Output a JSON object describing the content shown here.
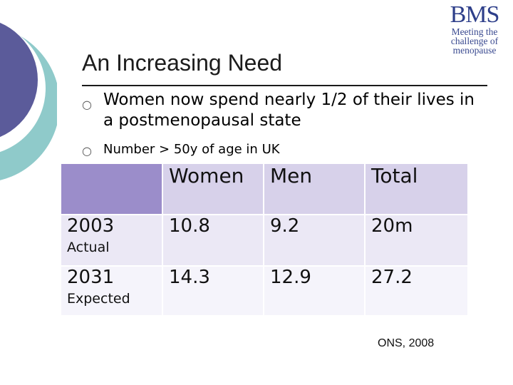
{
  "logo": {
    "mark": "BMS",
    "tagline": [
      "Meeting the",
      "challenge of",
      "menopause"
    ]
  },
  "title": "An Increasing Need",
  "bullets": [
    "Women now spend nearly 1/2 of their lives in a postmenopausal state",
    "Number > 50y of age in UK"
  ],
  "table": {
    "headers": [
      "",
      "Women",
      "Men",
      "Total"
    ],
    "rows": [
      {
        "year": "2003",
        "label": "Actual",
        "women": "10.8",
        "men": "9.2",
        "total": "20m"
      },
      {
        "year": "2031",
        "label": "Expected",
        "women": "14.3",
        "men": "12.9",
        "total": "27.2"
      }
    ]
  },
  "source": "ONS, 2008",
  "colors": {
    "circle_large": "#5b5b9a",
    "circle_ring": "#8fcaca",
    "header_cell": "#d7d1ea",
    "corner_cell": "#9b8dca",
    "logo": "#2e3f8a"
  }
}
